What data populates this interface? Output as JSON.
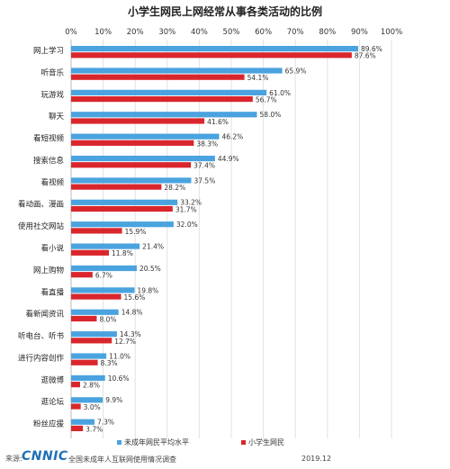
{
  "colors": {
    "blue": "#4aa3df",
    "red": "#d9262c",
    "grid": "#e2e2e2"
  },
  "chart_data": {
    "type": "bar",
    "orientation": "horizontal",
    "title": "小学生网民上网经常从事各类活动的比例",
    "x_ticks": [
      "0%",
      "10%",
      "20%",
      "30%",
      "40%",
      "50%",
      "60%",
      "70%",
      "80%",
      "90%",
      "100%"
    ],
    "xlim": [
      0,
      100
    ],
    "grid": true,
    "legend_position": "bottom",
    "categories": [
      "网上学习",
      "听音乐",
      "玩游戏",
      "聊天",
      "看短视频",
      "搜索信息",
      "看视频",
      "看动画、漫画",
      "使用社交网站",
      "看小说",
      "网上购物",
      "看直播",
      "看新闻资讯",
      "听电台、听书",
      "进行内容创作",
      "逛微博",
      "逛论坛",
      "粉丝应援"
    ],
    "series": [
      {
        "name": "未成年网民平均水平",
        "color": "#4aa3df",
        "values": [
          89.6,
          65.9,
          61.0,
          58.0,
          46.2,
          44.9,
          37.5,
          33.2,
          32.0,
          21.4,
          20.5,
          19.8,
          14.8,
          14.3,
          11.0,
          10.6,
          9.9,
          7.3
        ],
        "labels": [
          "89.6%",
          "65.9%",
          "61.0%",
          "58.0%",
          "46.2%",
          "44.9%",
          "37.5%",
          "33.2%",
          "32.0%",
          "21.4%",
          "20.5%",
          "19.8%",
          "14.8%",
          "14.3%",
          "11.0%",
          "10.6%",
          "9.9%",
          "7.3%"
        ]
      },
      {
        "name": "小学生网民",
        "color": "#d9262c",
        "values": [
          87.6,
          54.1,
          56.7,
          41.6,
          38.3,
          37.4,
          28.2,
          31.7,
          15.9,
          11.8,
          6.7,
          15.6,
          8.0,
          12.7,
          8.3,
          2.8,
          3.0,
          3.7
        ],
        "labels": [
          "87.6%",
          "54.1%",
          "56.7%",
          "41.6%",
          "38.3%",
          "37.4%",
          "28.2%",
          "31.7%",
          "15.9%",
          "11.8%",
          "6.7%",
          "15.6%",
          "8.0%",
          "12.7%",
          "8.3%",
          "2.8%",
          "3.0%",
          "3.7%"
        ]
      }
    ]
  },
  "footer": {
    "source_label": "来源:",
    "logo_text": "CNNIC",
    "source_desc": "全国未成年人互联网使用情况调查",
    "date": "2019.12"
  }
}
